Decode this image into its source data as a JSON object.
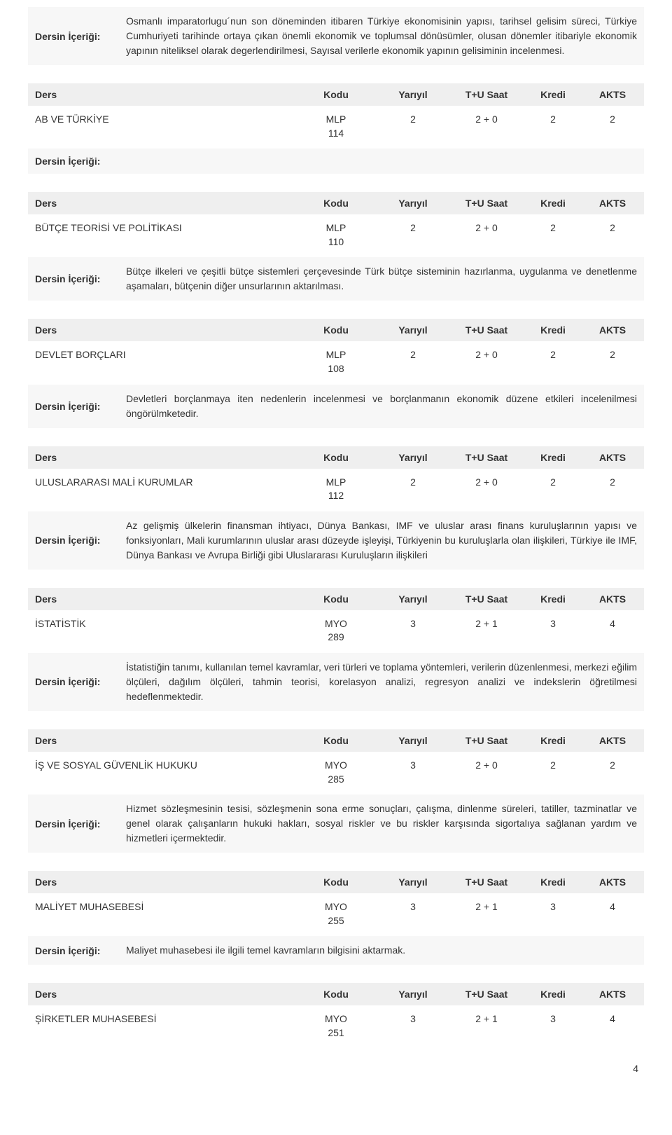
{
  "labels": {
    "ders": "Ders",
    "kodu": "Kodu",
    "yariyil": "Yarıyıl",
    "tu_saat": "T+U Saat",
    "kredi": "Kredi",
    "akts": "AKTS",
    "content_label": "Dersin İçeriği:"
  },
  "intro": {
    "content": "Osmanlı imparatorlugu´nun son döneminden itibaren Türkiye ekonomisinin yapısı, tarihsel gelisim süreci, Türkiye Cumhuriyeti tarihinde ortaya çıkan önemli ekonomik ve toplumsal dönüsümler, olusan dönemler itibariyle ekonomik yapının niteliksel olarak degerlendirilmesi, Sayısal verilerle ekonomik yapının gelisiminin incelenmesi."
  },
  "courses": [
    {
      "name": "AB VE TÜRKİYE",
      "code_prefix": "MLP",
      "code_num": "114",
      "semester": "2",
      "hours": "2 + 0",
      "credit": "2",
      "akts": "2",
      "content": ""
    },
    {
      "name": "BÜTÇE TEORİSİ VE POLİTİKASI",
      "code_prefix": "MLP",
      "code_num": "110",
      "semester": "2",
      "hours": "2 + 0",
      "credit": "2",
      "akts": "2",
      "content": "Bütçe ilkeleri ve çeşitli bütçe sistemleri çerçevesinde Türk bütçe sisteminin hazırlanma, uygulanma ve denetlenme aşamaları, bütçenin diğer unsurlarının aktarılması."
    },
    {
      "name": "DEVLET BORÇLARI",
      "code_prefix": "MLP",
      "code_num": "108",
      "semester": "2",
      "hours": "2 + 0",
      "credit": "2",
      "akts": "2",
      "content": "Devletleri borçlanmaya iten nedenlerin incelenmesi ve borçlanmanın ekonomik düzene etkileri incelenilmesi öngörülmketedir."
    },
    {
      "name": "ULUSLARARASI MALİ KURUMLAR",
      "code_prefix": "MLP",
      "code_num": "112",
      "semester": "2",
      "hours": "2 + 0",
      "credit": "2",
      "akts": "2",
      "content": "Az gelişmiş ülkelerin finansman ihtiyacı, Dünya Bankası, IMF ve uluslar arası finans kuruluşlarının yapısı ve fonksiyonları, Mali kurumlarının uluslar arası düzeyde işleyişi, Türkiyenin bu kuruluşlarla olan ilişkileri, Türkiye ile IMF, Dünya Bankası ve Avrupa Birliği gibi Uluslararası Kuruluşların ilişkileri"
    },
    {
      "name": "İSTATİSTİK",
      "code_prefix": "MYO",
      "code_num": "289",
      "semester": "3",
      "hours": "2 + 1",
      "credit": "3",
      "akts": "4",
      "content": "İstatistiğin tanımı, kullanılan temel kavramlar, veri türleri ve toplama yöntemleri, verilerin düzenlenmesi, merkezi eğilim ölçüleri, dağılım ölçüleri, tahmin teorisi, korelasyon analizi, regresyon analizi ve indekslerin öğretilmesi hedeflenmektedir."
    },
    {
      "name": "İŞ VE SOSYAL GÜVENLİK HUKUKU",
      "code_prefix": "MYO",
      "code_num": "285",
      "semester": "3",
      "hours": "2 + 0",
      "credit": "2",
      "akts": "2",
      "content": "Hizmet sözleşmesinin tesisi, sözleşmenin sona erme sonuçları, çalışma, dinlenme süreleri, tatiller, tazminatlar ve genel olarak çalışanların hukuki hakları, sosyal riskler ve bu riskler karşısında sigortalıya sağlanan yardım ve hizmetleri içermektedir."
    },
    {
      "name": "MALİYET MUHASEBESİ",
      "code_prefix": "MYO",
      "code_num": "255",
      "semester": "3",
      "hours": "2 + 1",
      "credit": "3",
      "akts": "4",
      "content": "Maliyet muhasebesi ile ilgili temel kavramların bilgisini aktarmak."
    },
    {
      "name": "ŞİRKETLER MUHASEBESİ",
      "code_prefix": "MYO",
      "code_num": "251",
      "semester": "3",
      "hours": "2 + 1",
      "credit": "3",
      "akts": "4",
      "content": null
    }
  ],
  "page_number": "4",
  "style": {
    "header_bg": "#efefef",
    "content_bg": "#f7f7f7",
    "text_color": "#333333",
    "font_size_pt": 14
  }
}
